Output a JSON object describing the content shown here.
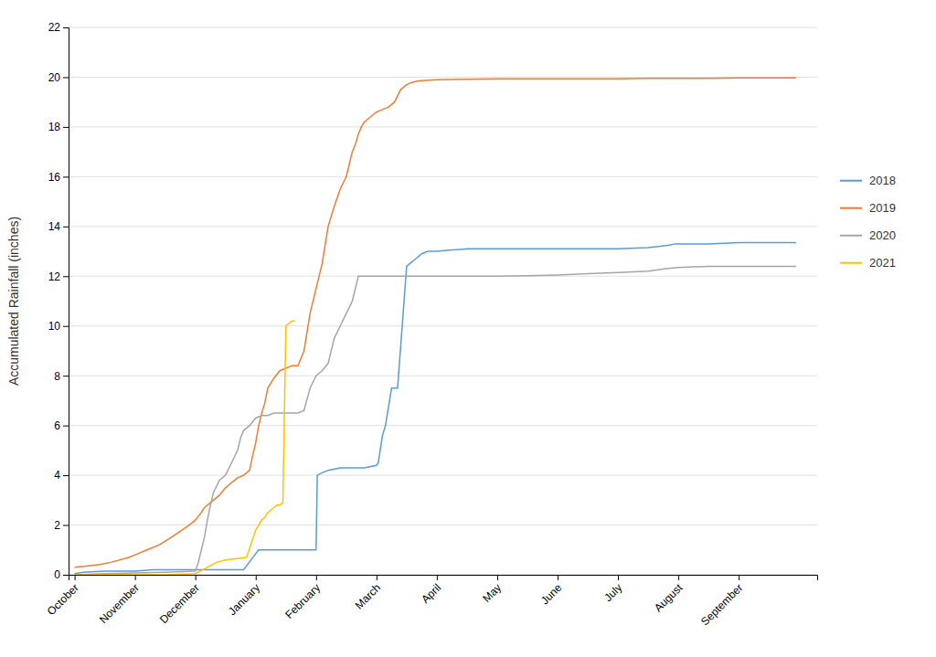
{
  "chart_data": {
    "type": "line",
    "ylabel": "Accumulated Rainfall (inches)",
    "xlim": [
      -0.1,
      12.3
    ],
    "xticks": [
      {
        "value": 0,
        "label": "October"
      },
      {
        "value": 1,
        "label": "November"
      },
      {
        "value": 2,
        "label": "December"
      },
      {
        "value": 3,
        "label": "January"
      },
      {
        "value": 4,
        "label": "February"
      },
      {
        "value": 5,
        "label": "March"
      },
      {
        "value": 6,
        "label": "April"
      },
      {
        "value": 7,
        "label": "May"
      },
      {
        "value": 8,
        "label": "June"
      },
      {
        "value": 9,
        "label": "July"
      },
      {
        "value": 10,
        "label": "August"
      },
      {
        "value": 11,
        "label": "September"
      }
    ],
    "ylim": [
      0,
      22
    ],
    "yticks": [
      0,
      2,
      4,
      6,
      8,
      10,
      12,
      14,
      16,
      18,
      20,
      22
    ],
    "grid": true,
    "legend": "right",
    "series": [
      {
        "name": "2018",
        "color": "#5B9BD5",
        "x": [
          0,
          0.15,
          0.5,
          1.0,
          1.3,
          1.8,
          2.0,
          2.3,
          2.6,
          2.8,
          3.0,
          3.05,
          3.2,
          3.5,
          3.8,
          4.0,
          4.02,
          4.1,
          4.2,
          4.4,
          4.6,
          4.8,
          5.0,
          5.03,
          5.1,
          5.15,
          5.25,
          5.35,
          5.5,
          5.55,
          5.65,
          5.75,
          5.85,
          6.0,
          6.2,
          6.5,
          7.0,
          7.5,
          8.0,
          8.5,
          9.0,
          9.5,
          9.7,
          9.85,
          9.95,
          10.5,
          11.0,
          11.95
        ],
        "values": [
          0.05,
          0.1,
          0.15,
          0.15,
          0.2,
          0.2,
          0.2,
          0.2,
          0.2,
          0.2,
          0.85,
          1.0,
          1.0,
          1.0,
          1.0,
          1.0,
          4.0,
          4.1,
          4.2,
          4.3,
          4.3,
          4.3,
          4.4,
          4.5,
          5.6,
          6.0,
          7.5,
          7.5,
          12.4,
          12.5,
          12.7,
          12.9,
          13.0,
          13.0,
          13.05,
          13.1,
          13.1,
          13.1,
          13.1,
          13.1,
          13.1,
          13.15,
          13.2,
          13.25,
          13.3,
          13.3,
          13.35,
          13.35
        ]
      },
      {
        "name": "2019",
        "color": "#ED7D31",
        "x": [
          0,
          0.2,
          0.4,
          0.6,
          0.9,
          1.05,
          1.2,
          1.4,
          1.6,
          1.9,
          2.0,
          2.1,
          2.15,
          2.2,
          2.3,
          2.4,
          2.5,
          2.6,
          2.7,
          2.8,
          2.9,
          2.95,
          3.0,
          3.05,
          3.1,
          3.15,
          3.2,
          3.3,
          3.4,
          3.5,
          3.55,
          3.6,
          3.7,
          3.8,
          3.9,
          4.0,
          4.1,
          4.2,
          4.3,
          4.4,
          4.5,
          4.55,
          4.6,
          4.65,
          4.7,
          4.75,
          4.8,
          4.85,
          4.9,
          4.95,
          5.0,
          5.1,
          5.2,
          5.3,
          5.4,
          5.5,
          5.6,
          5.7,
          6.0,
          6.5,
          7.0,
          7.5,
          8.0,
          8.5,
          9.0,
          9.5,
          10.0,
          10.5,
          11.0,
          11.95
        ],
        "values": [
          0.3,
          0.35,
          0.4,
          0.5,
          0.7,
          0.85,
          1.0,
          1.2,
          1.5,
          2.0,
          2.2,
          2.5,
          2.7,
          2.8,
          3.0,
          3.2,
          3.5,
          3.7,
          3.9,
          4.0,
          4.2,
          4.8,
          5.3,
          6.0,
          6.5,
          6.9,
          7.5,
          7.9,
          8.2,
          8.3,
          8.35,
          8.4,
          8.4,
          9.0,
          10.5,
          11.5,
          12.5,
          14.0,
          14.8,
          15.5,
          16.0,
          16.5,
          17.0,
          17.3,
          17.7,
          18.0,
          18.2,
          18.3,
          18.4,
          18.5,
          18.6,
          18.7,
          18.8,
          19.0,
          19.5,
          19.7,
          19.8,
          19.85,
          19.9,
          19.92,
          19.93,
          19.93,
          19.93,
          19.93,
          19.93,
          19.95,
          19.95,
          19.95,
          19.97,
          19.97
        ]
      },
      {
        "name": "2020",
        "color": "#A5A5A5",
        "x": [
          0,
          0.5,
          1.0,
          1.5,
          2.0,
          2.05,
          2.1,
          2.15,
          2.2,
          2.25,
          2.3,
          2.4,
          2.5,
          2.6,
          2.7,
          2.75,
          2.8,
          2.9,
          3.0,
          3.1,
          3.2,
          3.3,
          3.4,
          3.5,
          3.6,
          3.7,
          3.8,
          3.9,
          4.0,
          4.1,
          4.2,
          4.3,
          4.4,
          4.5,
          4.6,
          4.7,
          4.8,
          5.0,
          5.5,
          6.0,
          6.5,
          7.0,
          7.5,
          8.0,
          8.5,
          9.0,
          9.5,
          9.8,
          10.0,
          10.5,
          11.0,
          11.95
        ],
        "values": [
          0.0,
          0.05,
          0.07,
          0.1,
          0.15,
          0.5,
          1.0,
          1.5,
          2.2,
          2.8,
          3.3,
          3.8,
          4.0,
          4.5,
          5.0,
          5.5,
          5.8,
          6.0,
          6.3,
          6.4,
          6.4,
          6.5,
          6.5,
          6.5,
          6.5,
          6.5,
          6.6,
          7.5,
          8.0,
          8.2,
          8.5,
          9.5,
          10.0,
          10.5,
          11.0,
          12.0,
          12.0,
          12.0,
          12.0,
          12.0,
          12.0,
          12.0,
          12.02,
          12.05,
          12.1,
          12.15,
          12.2,
          12.3,
          12.35,
          12.4,
          12.4,
          12.4
        ]
      },
      {
        "name": "2021",
        "color": "#FFC000",
        "x": [
          0,
          0.5,
          1.0,
          1.5,
          2.0,
          2.2,
          2.35,
          2.5,
          2.7,
          2.85,
          3.0,
          3.05,
          3.1,
          3.15,
          3.2,
          3.25,
          3.3,
          3.35,
          3.4,
          3.45,
          3.5,
          3.55,
          3.6,
          3.65
        ],
        "values": [
          0.0,
          0.0,
          0.0,
          0.0,
          0.05,
          0.3,
          0.5,
          0.6,
          0.65,
          0.7,
          1.8,
          2.0,
          2.2,
          2.3,
          2.5,
          2.6,
          2.7,
          2.8,
          2.8,
          2.9,
          10.0,
          10.1,
          10.2,
          10.2
        ]
      }
    ]
  }
}
